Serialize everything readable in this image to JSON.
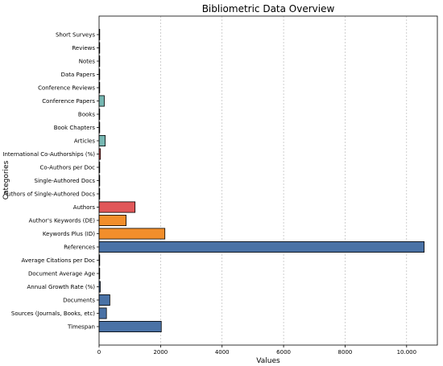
{
  "chart_data": {
    "type": "bar",
    "orientation": "horizontal",
    "title": "Bibliometric Data Overview",
    "xlabel": "Values",
    "ylabel": "Categories",
    "xlim": [
      0,
      11000
    ],
    "x_ticks": [
      0,
      2000,
      4000,
      6000,
      8000,
      10000
    ],
    "x_tick_labels": [
      "0",
      "2000",
      "4000",
      "6000",
      "8000",
      "10.000"
    ],
    "grid": "vertical dashed",
    "categories": [
      "Timespan",
      "Sources (Journals, Books, etc)",
      "Documents",
      "Annual Growth Rate (%)",
      "Document Average Age",
      "Average Citations per Doc",
      "References",
      "Keywords Plus (ID)",
      "Author's Keywords (DE)",
      "Authors",
      "Authors of Single-Authored Docs",
      "Single-Authored Docs",
      "Co-Authors per Doc",
      "International Co-Authorships (%)",
      "Articles",
      "Book Chapters",
      "Books",
      "Conference Papers",
      "Conference Reviews",
      "Data Papers",
      "Notes",
      "Reviews",
      "Short Surveys"
    ],
    "values": [
      2023,
      240,
      350,
      40,
      5,
      20,
      10570,
      2140,
      880,
      1170,
      12,
      15,
      5,
      45,
      200,
      8,
      3,
      170,
      5,
      3,
      3,
      10,
      2
    ],
    "colors": [
      "#4a72a6",
      "#4a72a6",
      "#4a72a6",
      "#4a72a6",
      "#4a72a6",
      "#4a72a6",
      "#4a72a6",
      "#f28e2b",
      "#f28e2b",
      "#e15759",
      "#e15759",
      "#e15759",
      "#e15759",
      "#e15759",
      "#76b7b2",
      "#76b7b2",
      "#76b7b2",
      "#76b7b2",
      "#76b7b2",
      "#76b7b2",
      "#76b7b2",
      "#76b7b2",
      "#76b7b2"
    ]
  }
}
